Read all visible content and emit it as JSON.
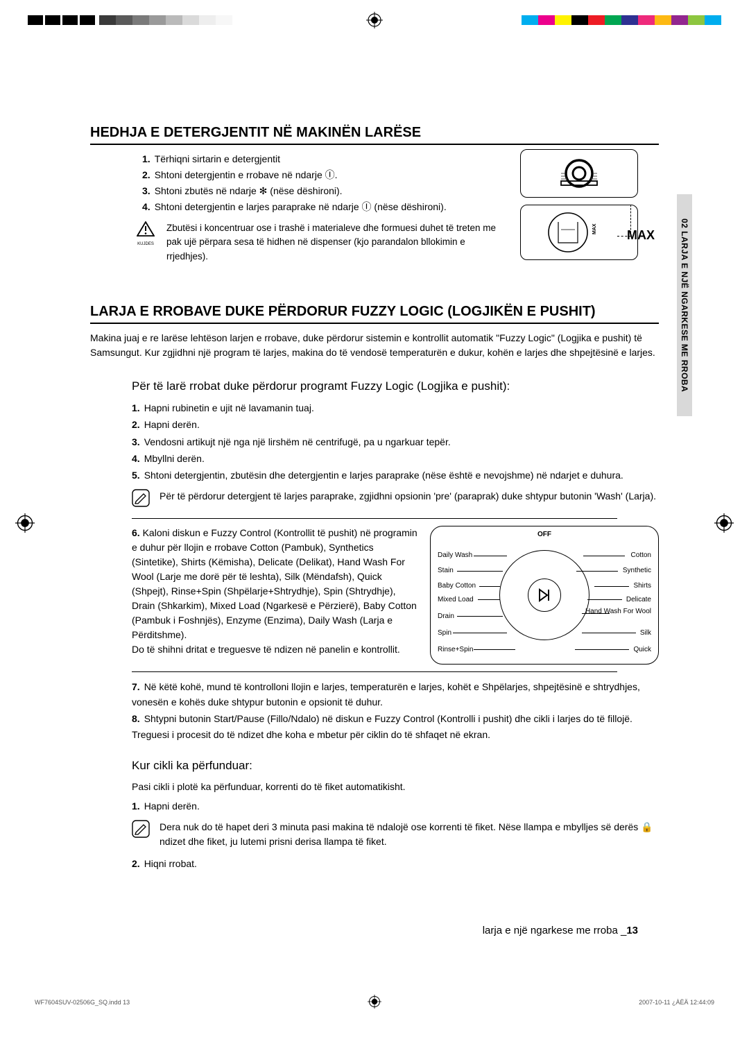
{
  "registration": {
    "greys": [
      "#3a3a3a",
      "#5a5a5a",
      "#7a7a7a",
      "#9a9a9a",
      "#bababa",
      "#dadada",
      "#eeeeee",
      "#f7f7f7"
    ],
    "colors": [
      "#00aeef",
      "#ec008c",
      "#fff200",
      "#000000",
      "#ed1c24",
      "#00a651",
      "#2e3192",
      "#ee2a7b",
      "#fdb913",
      "#92278f",
      "#8dc63f",
      "#00adee"
    ]
  },
  "sideTab": "02  LARJA E NJË NGARKESE ME RROBA",
  "section1": {
    "title": "HEDHJA E DETERGJENTIT NË MAKINËN LARËSE",
    "steps": [
      "Tërhiqni sirtarin e detergjentit",
      "Shtoni detergjentin e rrobave në ndarje Ⓘ.",
      "Shtoni zbutës në ndarje ✻ (nëse dëshironi).",
      "Shtoni detergjentin e larjes paraprake në ndarje Ⓘ (nëse dëshironi)."
    ],
    "warnCaption": "KUJDES",
    "warnText": "Zbutësi i koncentruar ose i trashë i materialeve dhe formuesi duhet të treten me pak ujë përpara sesa të hidhen në dispenser (kjo parandalon bllokimin e rrjedhjes).",
    "maxLabel": "MAX"
  },
  "section2": {
    "title": "LARJA E RROBAVE DUKE PËRDORUR FUZZY LOGIC (LOGJIKËN E PUSHIT)",
    "intro": "Makina juaj e re larëse lehtëson larjen e rrobave, duke përdorur sistemin e kontrollit automatik \"Fuzzy Logic\" (Logjika e pushit) të Samsungut. Kur zgjidhni një program të larjes, makina do të vendosë temperaturën e dukur, kohën e larjes dhe shpejtësinë e larjes.",
    "sub1": "Për të larë rrobat duke përdorur programt Fuzzy Logic (Logjika e pushit):",
    "steps1_5": [
      "Hapni rubinetin e ujit në lavamanin tuaj.",
      "Hapni derën.",
      "Vendosni artikujt një nga një lirshëm në centrifugë, pa u ngarkuar tepër.",
      "Mbyllni derën.",
      "Shtoni detergjentin, zbutësin dhe detergjentin e larjes paraprake (nëse është e nevojshme) në ndarjet e duhura."
    ],
    "tip": "Për të përdorur detergjent të larjes paraprake, zgjidhni opsionin 'pre' (paraprak) duke shtypur butonin 'Wash' (Larja).",
    "step6": "Kaloni diskun e Fuzzy Control (Kontrollit të pushit) në programin e duhur për llojin e rrobave Cotton (Pambuk), Synthetics (Sintetike), Shirts (Këmisha), Delicate (Delikat), Hand Wash For Wool (Larje me dorë për të leshta), Silk (Mëndafsh), Quick (Shpejt), Rinse+Spin (Shpëlarje+Shtrydhje), Spin (Shtrydhje), Drain (Shkarkim), Mixed Load (Ngarkesë e Përzierë), Baby Cotton (Pambuk i Foshnjës), Enzyme (Enzima), Daily Wash (Larja e Përditshme).",
    "step6b": "Do të shihni dritat e treguesve të ndizen në panelin e kontrollit.",
    "dial": {
      "off": "OFF",
      "left": [
        "Daily Wash",
        "Stain",
        "Baby Cotton",
        "Mixed Load",
        "Drain",
        "Spin",
        "Rinse+Spin"
      ],
      "right": [
        "Cotton",
        "Synthetic",
        "Shirts",
        "Delicate",
        "Hand Wash For Wool",
        "Silk",
        "Quick"
      ]
    },
    "steps7_8": [
      "Në këtë kohë, mund të kontrolloni llojin e larjes, temperaturën e larjes, kohët e Shpëlarjes, shpejtësinë e shtrydhjes, vonesën e kohës duke shtypur butonin e opsionit të duhur.",
      "Shtypni butonin Start/Pause (Fillo/Ndalo) në diskun e Fuzzy Control (Kontrolli i pushit) dhe cikli i larjes do të fillojë. Treguesi i procesit do të ndizet dhe koha e mbetur për ciklin do të shfaqet në ekran."
    ],
    "sub2": "Kur cikli ka përfunduar:",
    "after1": "Pasi cikli i plotë ka përfunduar, korrenti do të fiket automatikisht.",
    "afterStep1": "Hapni derën.",
    "afterTip": "Dera nuk do të hapet deri 3 minuta pasi makina të ndalojë ose korrenti të fiket. Nëse llampa e mbylljes së derës 🔒 ndizet dhe fiket, ju lutemi prisni derisa llampa të fiket.",
    "afterStep2": "Hiqni rrobat."
  },
  "footer": {
    "text": "larja e një ngarkese me rroba _",
    "page": "13"
  },
  "printFooter": {
    "file": "WF7604SUV-02506G_SQ.indd   13",
    "date": "2007-10-11   ¿ÀÈÄ 12:44:09"
  }
}
